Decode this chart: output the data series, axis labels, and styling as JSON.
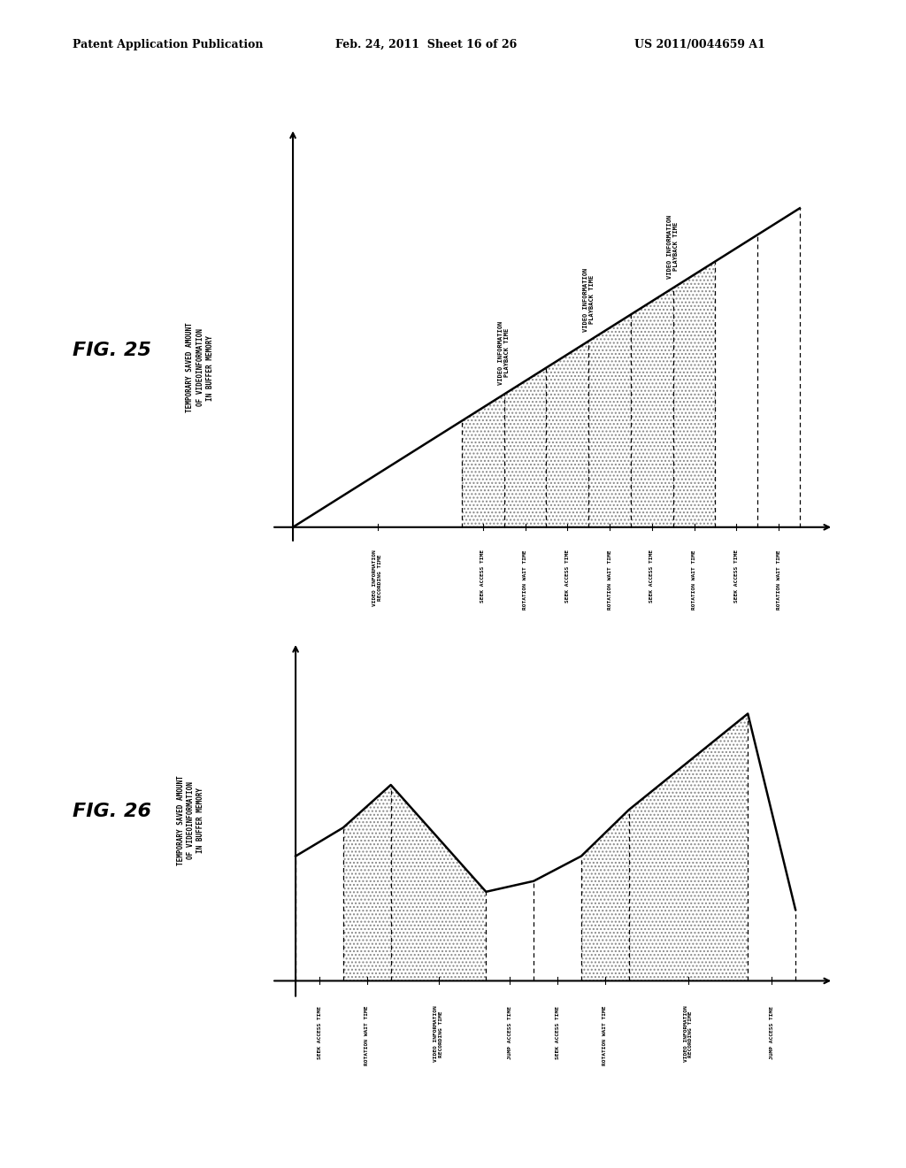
{
  "header_left": "Patent Application Publication",
  "header_mid": "Feb. 24, 2011  Sheet 16 of 26",
  "header_right": "US 2011/0044659 A1",
  "fig25_label": "FIG. 25",
  "fig26_label": "FIG. 26",
  "fig25_ylabel": "TEMPORARY SAVED AMOUNT\nOF VIDEOINFORMATION\nIN BUFFER MEMORY",
  "fig26_ylabel": "TEMPORARY SAVED AMOUNT\nOF VIDEOINFORMATION\nIN BUFFER MEMORY",
  "fig25_xtick_labels": [
    "VIDEO INFORMATION\nRECORDING TIME",
    "SEEK ACCESS TIME",
    "ROTATION WAIT TIME",
    "SEEK ACCESS TIME",
    "ROTATION WAIT TIME",
    "SEEK ACCESS TIME",
    "ROTATION WAIT TIME",
    "SEEK ACCESS TIME",
    "ROTATION WAIT TIME"
  ],
  "fig25_playback_label": "VIDEO INFORMATION\nPLAYBACK TIME",
  "fig26_xtick_labels": [
    "SEEK ACCESS TIME",
    "ROTATION WAIT TIME",
    "VIDEO INFORMATION\nRECORDING TIME",
    "JUMP ACCESS TIME",
    "SEEK ACCESS TIME",
    "ROTATION WAIT TIME",
    "VIDEO INFORMATION\nRECORDING TIME",
    "JUMP ACCESS TIME"
  ],
  "bg_color": "#ffffff",
  "line_color": "#000000"
}
